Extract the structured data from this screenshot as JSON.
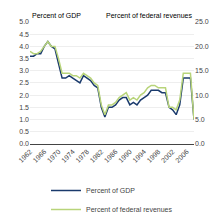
{
  "chart_data": {
    "type": "line",
    "y_label": "Percent of GDP",
    "y2_label": "Percent of federal revenues",
    "x": [
      1962,
      1963,
      1964,
      1965,
      1966,
      1967,
      1968,
      1969,
      1970,
      1971,
      1972,
      1973,
      1974,
      1975,
      1976,
      1977,
      1978,
      1979,
      1980,
      1981,
      1982,
      1983,
      1984,
      1985,
      1986,
      1987,
      1988,
      1989,
      1990,
      1991,
      1992,
      1993,
      1994,
      1995,
      1996,
      1997,
      1998,
      1999,
      2000,
      2001,
      2002,
      2003,
      2004,
      2005,
      2006,
      2007,
      2008
    ],
    "series": [
      {
        "name": "Percent of GDP",
        "color": "#1a3a6c",
        "values": [
          3.6,
          3.6,
          3.7,
          3.7,
          4.0,
          4.2,
          4.0,
          3.9,
          3.3,
          2.7,
          2.7,
          2.8,
          2.7,
          2.6,
          2.5,
          2.8,
          2.7,
          2.6,
          2.4,
          2.3,
          1.5,
          1.1,
          1.5,
          1.5,
          1.6,
          1.8,
          1.9,
          1.9,
          1.6,
          1.7,
          1.6,
          1.8,
          1.9,
          2.0,
          2.2,
          2.2,
          2.2,
          2.1,
          2.1,
          1.5,
          1.4,
          1.2,
          1.6,
          2.7,
          2.7,
          2.7,
          1.0
        ]
      },
      {
        "name": "Percent of federal revenues",
        "color": "#b8d47a",
        "axis": "y2",
        "values": [
          19.0,
          18.5,
          18.5,
          19.0,
          20.0,
          21.0,
          20.0,
          20.0,
          17.5,
          14.5,
          14.5,
          14.5,
          14.0,
          14.0,
          13.5,
          14.5,
          14.0,
          13.5,
          12.5,
          12.0,
          8.0,
          6.0,
          8.0,
          8.0,
          8.5,
          9.5,
          10.0,
          10.5,
          9.0,
          9.5,
          9.0,
          10.0,
          10.5,
          11.5,
          12.0,
          12.0,
          11.5,
          11.5,
          11.5,
          7.5,
          7.5,
          7.0,
          9.0,
          14.5,
          14.5,
          14.5,
          5.0
        ]
      }
    ],
    "xlim": [
      1962,
      2008
    ],
    "xticks": [
      1962,
      1966,
      1970,
      1974,
      1978,
      1982,
      1986,
      1990,
      1994,
      1998,
      2002,
      2006
    ],
    "ylim": [
      0.0,
      5.0
    ],
    "yticks": [
      {
        "value": 0,
        "label": "0.0"
      },
      0.5,
      {
        "value": 1,
        "label": "1.0"
      },
      1.5,
      {
        "value": 2,
        "label": "2.0"
      },
      2.5,
      {
        "value": 3,
        "label": "3.0"
      },
      3.5,
      {
        "value": 4,
        "label": "4.0"
      },
      4.5,
      {
        "value": 5,
        "label": "5.0"
      }
    ],
    "y2lim": [
      0.0,
      25.0
    ],
    "y2ticks": [
      {
        "value": 0,
        "label": "0.0"
      },
      {
        "value": 5,
        "label": "5.0"
      },
      {
        "value": 10,
        "label": "10.0"
      },
      {
        "value": 15,
        "label": "15.0"
      },
      {
        "value": 20,
        "label": "20.0"
      },
      {
        "value": 25,
        "label": "25.0"
      }
    ],
    "grid": true,
    "legend": "bottom"
  }
}
